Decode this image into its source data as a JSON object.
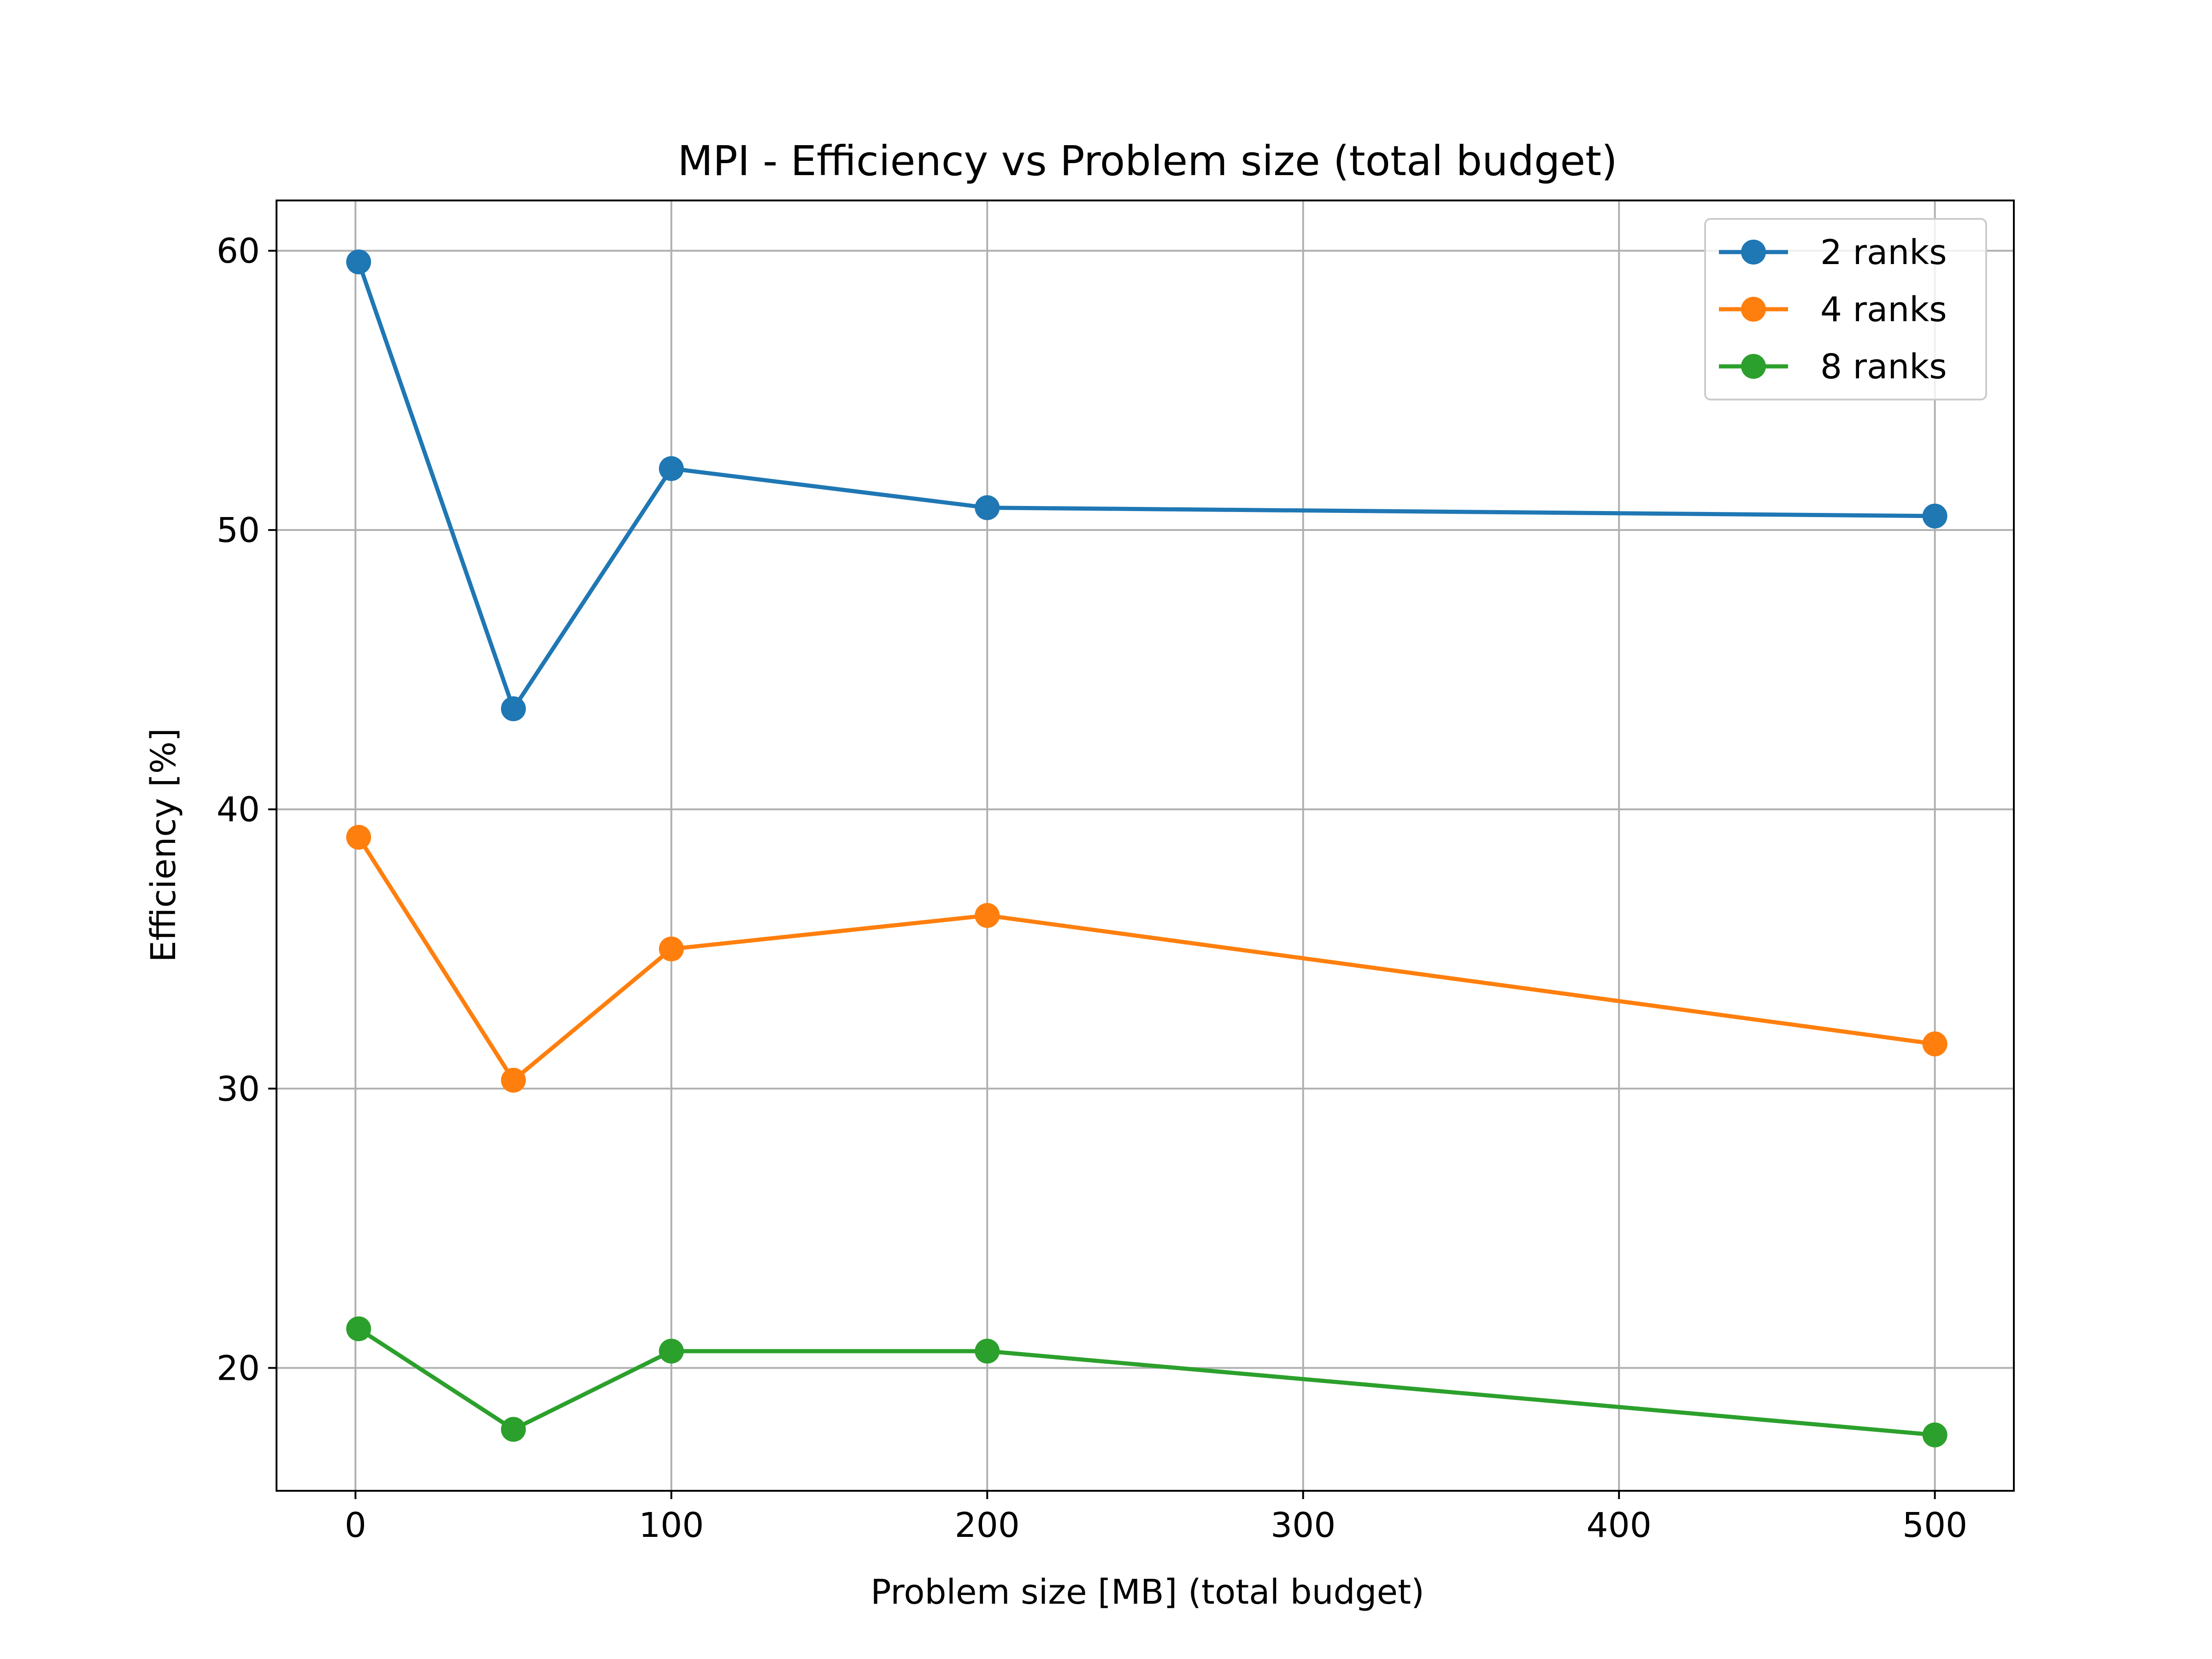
{
  "chart_data": {
    "type": "line",
    "title": "MPI - Efficiency vs Problem size (total budget)",
    "xlabel": "Problem size [MB] (total budget)",
    "ylabel": "Efficiency [%]",
    "xlim": [
      -25,
      525
    ],
    "ylim": [
      15.6,
      61.8
    ],
    "x_ticks": [
      0,
      100,
      200,
      300,
      400,
      500
    ],
    "y_ticks": [
      20,
      30,
      40,
      50,
      60
    ],
    "grid": true,
    "legend_position": "top-right",
    "x": [
      1,
      50,
      100,
      200,
      500
    ],
    "series": [
      {
        "name": "2 ranks",
        "color": "#1f77b4",
        "values": [
          59.6,
          43.6,
          52.2,
          50.8,
          50.5
        ]
      },
      {
        "name": "4 ranks",
        "color": "#ff7f0e",
        "values": [
          39.0,
          30.3,
          35.0,
          36.2,
          31.6
        ]
      },
      {
        "name": "8 ranks",
        "color": "#2ca02c",
        "values": [
          21.4,
          17.8,
          20.6,
          20.6,
          17.6
        ]
      }
    ]
  }
}
